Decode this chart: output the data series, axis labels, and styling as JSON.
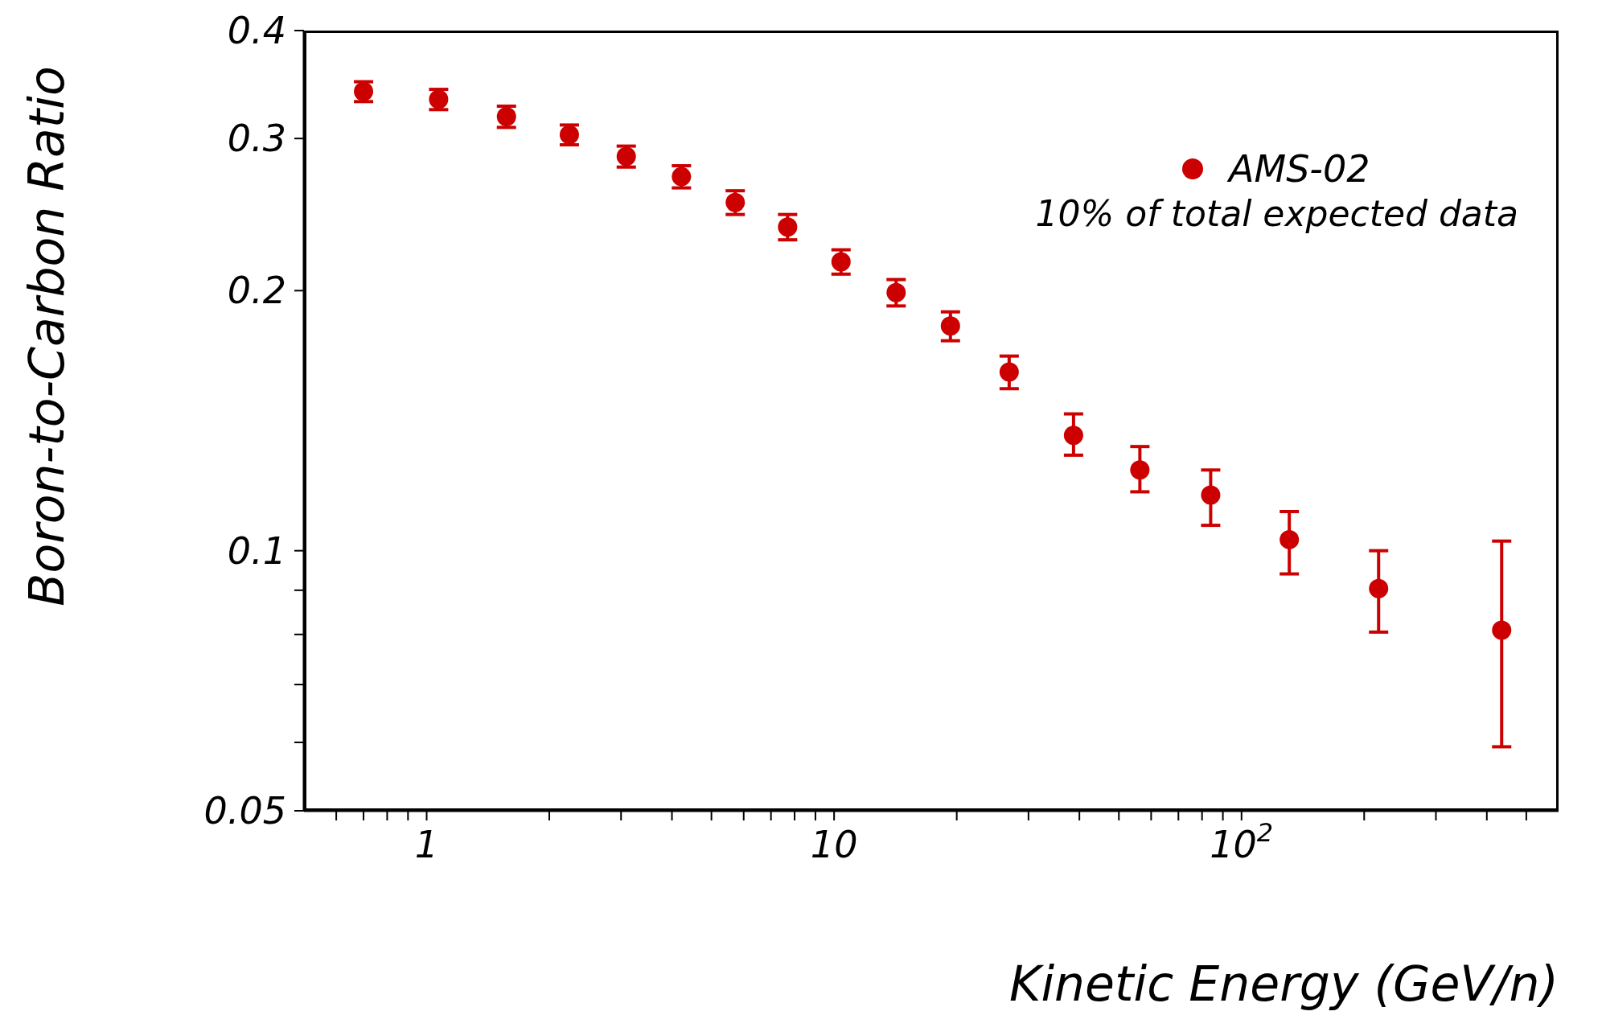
{
  "chart_data": {
    "type": "scatter",
    "xlabel": "Kinetic Energy (GeV/n)",
    "ylabel": "Boron-to-Carbon Ratio",
    "annotations": [
      "10% of total expected data"
    ],
    "log": "xy",
    "legend": "top right",
    "marker": "circle",
    "xlim": [
      0.5,
      600
    ],
    "ylim": [
      0.05,
      0.4
    ],
    "xticks": [
      {
        "value": 0.6,
        "label": null
      },
      {
        "value": 0.7,
        "label": null
      },
      {
        "value": 0.8,
        "label": null
      },
      {
        "value": 0.9,
        "label": null
      },
      1,
      {
        "value": 2,
        "label": null
      },
      {
        "value": 3,
        "label": null
      },
      {
        "value": 4,
        "label": null
      },
      {
        "value": 5,
        "label": null
      },
      {
        "value": 6,
        "label": null
      },
      {
        "value": 7,
        "label": null
      },
      {
        "value": 8,
        "label": null
      },
      {
        "value": 9,
        "label": null
      },
      10,
      {
        "value": 20,
        "label": null
      },
      {
        "value": 30,
        "label": null
      },
      {
        "value": 40,
        "label": null
      },
      {
        "value": 50,
        "label": null
      },
      {
        "value": 60,
        "label": null
      },
      {
        "value": 70,
        "label": null
      },
      {
        "value": 80,
        "label": null
      },
      {
        "value": 90,
        "label": null
      },
      {
        "value": 100,
        "label": "10$^{2}$"
      },
      {
        "value": 200,
        "label": null
      },
      {
        "value": 300,
        "label": null
      },
      {
        "value": 400,
        "label": null
      },
      {
        "value": 500,
        "label": null
      }
    ],
    "yticks": [
      0.05,
      {
        "value": 0.06,
        "label": null
      },
      {
        "value": 0.07,
        "label": null
      },
      {
        "value": 0.08,
        "label": null
      },
      {
        "value": 0.09,
        "label": null
      },
      0.1,
      0.2,
      0.3,
      0.4
    ],
    "x": [
      0.7,
      1.07,
      1.57,
      2.24,
      3.09,
      4.22,
      5.72,
      7.69,
      10.4,
      14.2,
      19.3,
      26.9,
      38.7,
      56.3,
      84,
      131,
      217,
      435
    ],
    "series": [
      {
        "name": "AMS-02",
        "color": "#cc0000",
        "values": [
          0.34,
          0.333,
          0.318,
          0.303,
          0.286,
          0.271,
          0.253,
          0.237,
          0.216,
          0.199,
          0.182,
          0.161,
          0.136,
          0.124,
          0.116,
          0.103,
          0.0904,
          0.0809
        ],
        "errors": [
          [
            0.331,
            0.349
          ],
          [
            0.324,
            0.342
          ],
          [
            0.309,
            0.327
          ],
          [
            0.295,
            0.311
          ],
          [
            0.278,
            0.294
          ],
          [
            0.263,
            0.279
          ],
          [
            0.245,
            0.261
          ],
          [
            0.229,
            0.245
          ],
          [
            0.209,
            0.223
          ],
          [
            0.192,
            0.206
          ],
          [
            0.175,
            0.189
          ],
          [
            0.154,
            0.168
          ],
          [
            0.129,
            0.144
          ],
          [
            0.117,
            0.132
          ],
          [
            0.107,
            0.124
          ],
          [
            0.094,
            0.111
          ],
          [
            0.0805,
            0.1
          ],
          [
            0.0593,
            0.1026
          ]
        ]
      }
    ]
  }
}
